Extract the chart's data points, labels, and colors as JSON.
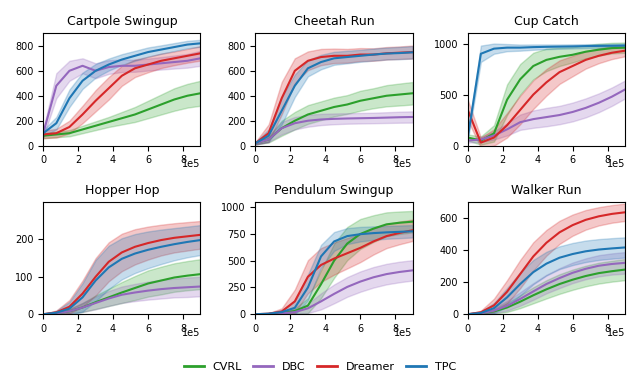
{
  "subplots": [
    {
      "title": "Cartpole Swingup",
      "ylim": [
        0,
        900
      ],
      "yticks": [
        0,
        200,
        400,
        600,
        800
      ],
      "series": {
        "CVRL": {
          "mean": [
            80,
            90,
            100,
            130,
            160,
            190,
            220,
            250,
            290,
            330,
            370,
            400,
            420
          ],
          "std": [
            20,
            22,
            25,
            30,
            35,
            40,
            50,
            60,
            70,
            80,
            90,
            95,
            100
          ]
        },
        "DBC": {
          "mean": [
            100,
            480,
            600,
            640,
            600,
            630,
            640,
            640,
            650,
            660,
            670,
            680,
            700
          ],
          "std": [
            30,
            100,
            80,
            60,
            60,
            55,
            50,
            48,
            48,
            50,
            52,
            55,
            60
          ]
        },
        "Dreamer": {
          "mean": [
            90,
            100,
            150,
            250,
            360,
            460,
            560,
            620,
            650,
            680,
            700,
            720,
            740
          ],
          "std": [
            30,
            35,
            50,
            70,
            85,
            90,
            80,
            70,
            62,
            58,
            55,
            55,
            58
          ]
        },
        "TPC": {
          "mean": [
            100,
            180,
            380,
            520,
            600,
            650,
            690,
            720,
            750,
            770,
            790,
            810,
            820
          ],
          "std": [
            25,
            50,
            70,
            65,
            55,
            48,
            43,
            40,
            37,
            34,
            32,
            30,
            28
          ]
        }
      }
    },
    {
      "title": "Cheetah Run",
      "ylim": [
        0,
        900
      ],
      "yticks": [
        0,
        200,
        400,
        600,
        800
      ],
      "series": {
        "CVRL": {
          "mean": [
            20,
            50,
            140,
            200,
            250,
            280,
            310,
            330,
            360,
            380,
            400,
            410,
            420
          ],
          "std": [
            10,
            25,
            60,
            70,
            75,
            75,
            75,
            75,
            80,
            80,
            85,
            88,
            90
          ]
        },
        "DBC": {
          "mean": [
            20,
            50,
            140,
            180,
            200,
            210,
            215,
            218,
            220,
            222,
            225,
            228,
            230
          ],
          "std": [
            10,
            20,
            50,
            50,
            48,
            45,
            43,
            42,
            42,
            42,
            43,
            44,
            45
          ]
        },
        "Dreamer": {
          "mean": [
            20,
            100,
            380,
            600,
            680,
            710,
            720,
            720,
            730,
            730,
            740,
            745,
            750
          ],
          "std": [
            10,
            70,
            130,
            100,
            75,
            65,
            58,
            55,
            52,
            50,
            50,
            50,
            52
          ]
        },
        "TPC": {
          "mean": [
            20,
            80,
            280,
            480,
            620,
            670,
            700,
            710,
            720,
            730,
            738,
            742,
            748
          ],
          "std": [
            10,
            50,
            110,
            90,
            65,
            58,
            52,
            50,
            48,
            48,
            48,
            49,
            50
          ]
        }
      }
    },
    {
      "title": "Cup Catch",
      "ylim": [
        0,
        1100
      ],
      "yticks": [
        0,
        500,
        1000
      ],
      "series": {
        "CVRL": {
          "mean": [
            80,
            50,
            120,
            450,
            650,
            780,
            840,
            870,
            890,
            920,
            940,
            955,
            960
          ],
          "std": [
            30,
            40,
            80,
            150,
            150,
            130,
            110,
            90,
            75,
            65,
            58,
            52,
            50
          ]
        },
        "DBC": {
          "mean": [
            50,
            60,
            100,
            160,
            230,
            260,
            280,
            300,
            330,
            370,
            420,
            480,
            550
          ],
          "std": [
            20,
            25,
            40,
            60,
            75,
            85,
            90,
            90,
            92,
            93,
            92,
            90,
            88
          ]
        },
        "Dreamer": {
          "mean": [
            350,
            30,
            80,
            200,
            350,
            500,
            620,
            720,
            780,
            840,
            880,
            910,
            930
          ],
          "std": [
            100,
            50,
            80,
            120,
            140,
            140,
            130,
            115,
            100,
            85,
            72,
            62,
            55
          ]
        },
        "TPC": {
          "mean": [
            80,
            900,
            950,
            960,
            960,
            965,
            968,
            970,
            972,
            975,
            977,
            978,
            980
          ],
          "std": [
            30,
            80,
            50,
            35,
            30,
            26,
            23,
            21,
            20,
            19,
            18,
            18,
            18
          ]
        }
      }
    },
    {
      "title": "Hopper Hop",
      "ylim": [
        0,
        300
      ],
      "yticks": [
        0,
        100,
        200
      ],
      "series": {
        "CVRL": {
          "mean": [
            0,
            2,
            8,
            18,
            32,
            45,
            58,
            70,
            82,
            90,
            98,
            103,
            107
          ],
          "std": [
            0,
            2,
            6,
            12,
            18,
            23,
            28,
            32,
            35,
            37,
            38,
            39,
            40
          ]
        },
        "DBC": {
          "mean": [
            0,
            2,
            8,
            18,
            30,
            42,
            52,
            58,
            63,
            67,
            70,
            72,
            74
          ],
          "std": [
            0,
            2,
            6,
            12,
            17,
            20,
            22,
            23,
            24,
            25,
            25,
            26,
            26
          ]
        },
        "Dreamer": {
          "mean": [
            0,
            5,
            20,
            55,
            100,
            140,
            165,
            180,
            190,
            198,
            204,
            208,
            212
          ],
          "std": [
            0,
            5,
            18,
            35,
            50,
            52,
            50,
            47,
            44,
            41,
            39,
            38,
            37
          ]
        },
        "TPC": {
          "mean": [
            0,
            4,
            15,
            45,
            90,
            125,
            148,
            162,
            172,
            180,
            187,
            193,
            198
          ],
          "std": [
            0,
            5,
            18,
            38,
            55,
            58,
            55,
            52,
            49,
            46,
            43,
            41,
            40
          ]
        }
      }
    },
    {
      "title": "Pendulum Swingup",
      "ylim": [
        0,
        1050
      ],
      "yticks": [
        0,
        250,
        500,
        750,
        1000
      ],
      "series": {
        "CVRL": {
          "mean": [
            0,
            2,
            10,
            30,
            80,
            280,
            500,
            660,
            750,
            800,
            840,
            855,
            865
          ],
          "std": [
            0,
            2,
            10,
            25,
            70,
            130,
            160,
            155,
            140,
            125,
            112,
            105,
            100
          ]
        },
        "DBC": {
          "mean": [
            0,
            2,
            8,
            20,
            55,
            120,
            190,
            255,
            305,
            345,
            375,
            395,
            410
          ],
          "std": [
            0,
            2,
            8,
            18,
            45,
            75,
            88,
            92,
            95,
            96,
            96,
            96,
            95
          ]
        },
        "Dreamer": {
          "mean": [
            0,
            5,
            25,
            120,
            350,
            460,
            520,
            570,
            620,
            680,
            730,
            760,
            785
          ],
          "std": [
            0,
            5,
            30,
            110,
            155,
            158,
            150,
            142,
            133,
            122,
            112,
            106,
            100
          ]
        },
        "TPC": {
          "mean": [
            0,
            5,
            20,
            60,
            250,
            540,
            680,
            730,
            748,
            758,
            765,
            770,
            775
          ],
          "std": [
            0,
            5,
            20,
            65,
            120,
            108,
            88,
            75,
            68,
            63,
            60,
            59,
            58
          ]
        }
      }
    },
    {
      "title": "Walker Run",
      "ylim": [
        0,
        700
      ],
      "yticks": [
        0,
        200,
        400,
        600
      ],
      "series": {
        "CVRL": {
          "mean": [
            0,
            5,
            18,
            42,
            78,
            118,
            155,
            188,
            215,
            238,
            256,
            268,
            278
          ],
          "std": [
            0,
            4,
            14,
            28,
            40,
            50,
            57,
            61,
            63,
            64,
            65,
            65,
            66
          ]
        },
        "DBC": {
          "mean": [
            0,
            5,
            22,
            52,
            95,
            142,
            188,
            225,
            258,
            283,
            302,
            313,
            320
          ],
          "std": [
            0,
            4,
            16,
            30,
            42,
            52,
            58,
            62,
            64,
            65,
            66,
            66,
            67
          ]
        },
        "Dreamer": {
          "mean": [
            0,
            12,
            55,
            140,
            250,
            360,
            445,
            510,
            555,
            588,
            610,
            625,
            635
          ],
          "std": [
            0,
            10,
            42,
            72,
            88,
            88,
            80,
            72,
            66,
            61,
            57,
            55,
            54
          ]
        },
        "TPC": {
          "mean": [
            0,
            8,
            38,
            105,
            188,
            262,
            315,
            352,
            375,
            392,
            403,
            410,
            416
          ],
          "std": [
            0,
            8,
            32,
            58,
            72,
            76,
            74,
            71,
            69,
            67,
            65,
            64,
            63
          ]
        }
      }
    }
  ],
  "x_max": 900000,
  "n_points": 13,
  "colors": {
    "CVRL": "#2ca02c",
    "DBC": "#9467bd",
    "Dreamer": "#d62728",
    "TPC": "#1f77b4"
  },
  "legend_order": [
    "CVRL",
    "DBC",
    "Dreamer",
    "TPC"
  ],
  "alpha_fill": 0.25,
  "linewidth": 1.5
}
